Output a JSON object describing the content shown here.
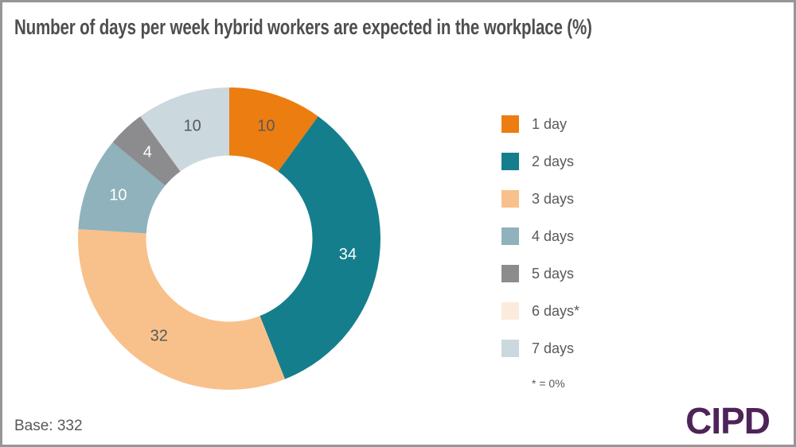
{
  "chart_data": {
    "type": "pie",
    "subtype": "donut",
    "title": "Number of days per week hybrid workers are expected in the workplace (%)",
    "unit": "%",
    "direction": "clockwise",
    "start_angle_deg": 0,
    "inner_radius_ratio": 0.55,
    "legend_position": "right",
    "slices": [
      {
        "label": "1 day",
        "value": 10,
        "color": "#EC7D10",
        "label_color": "#58595B"
      },
      {
        "label": "2 days",
        "value": 34,
        "color": "#157E8C",
        "label_color": "#FFFFFF"
      },
      {
        "label": "3 days",
        "value": 32,
        "color": "#F8C18B",
        "label_color": "#58595B"
      },
      {
        "label": "4 days",
        "value": 10,
        "color": "#8FB2BC",
        "label_color": "#FFFFFF"
      },
      {
        "label": "5 days",
        "value": 4,
        "color": "#8C8C8E",
        "label_color": "#FFFFFF"
      },
      {
        "label": "6 days*",
        "value": 0,
        "color": "#FCEBDC",
        "label_color": "#58595B"
      },
      {
        "label": "7 days",
        "value": 10,
        "color": "#CBD8DE",
        "label_color": "#58595B"
      }
    ],
    "footnote": "* = 0%"
  },
  "footer": {
    "base_label": "Base: 332",
    "logo_text": "CIPD"
  },
  "colors": {
    "title_text": "#4D4E50",
    "body_text": "#58595B",
    "logo_purple": "#4E2458",
    "frame_border": "#969696",
    "background": "#FFFFFF"
  }
}
